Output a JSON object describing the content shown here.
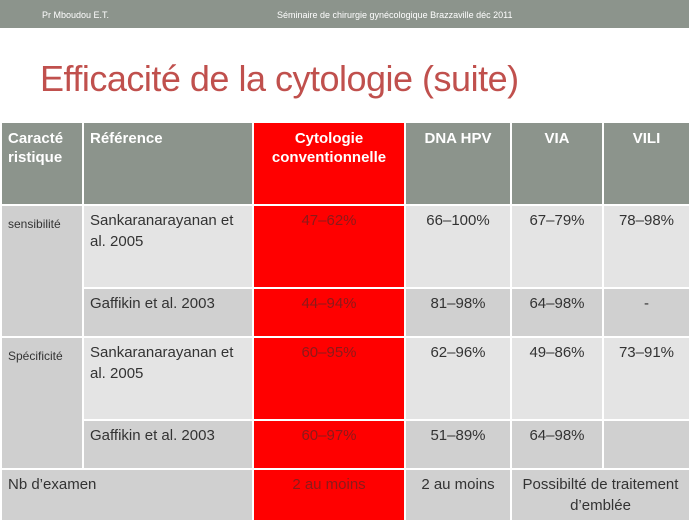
{
  "header": {
    "author": "Pr Mboudou  E.T.",
    "seminar": "Séminaire de chirurgie gynécologique Brazzaville déc 2011"
  },
  "title": "Efficacité de la cytologie (suite)",
  "table": {
    "headers": [
      "Caracté ristique",
      "Référence",
      "Cytologie conventionnelle",
      "DNA HPV",
      "VIA",
      "VILI"
    ],
    "rows": [
      {
        "group": "sensibilité",
        "ref": "Sankaranarayanan et al. 2005",
        "cyto": "47–62%",
        "dna": "66–100%",
        "via": "67–79%",
        "vili": "78–98%"
      },
      {
        "ref": "Gaffikin et al. 2003",
        "cyto": "44–94%",
        "dna": "81–98%",
        "via": "64–98%",
        "vili": "-"
      },
      {
        "group": "Spécificité",
        "ref": "Sankaranarayanan et al. 2005",
        "cyto": "60–95%",
        "dna": "62–96%",
        "via": "49–86%",
        "vili": "73–91%"
      },
      {
        "ref": "Gaffikin et al. 2003",
        "cyto": "60–97%",
        "dna": "51–89%",
        "via": "64–98%",
        "vili": ""
      }
    ],
    "footer": {
      "label": "Nb d’examen",
      "cyto": "2 au moins",
      "dna": "2 au moins",
      "via_vili": "Possibilté de traitement d’emblée"
    }
  }
}
